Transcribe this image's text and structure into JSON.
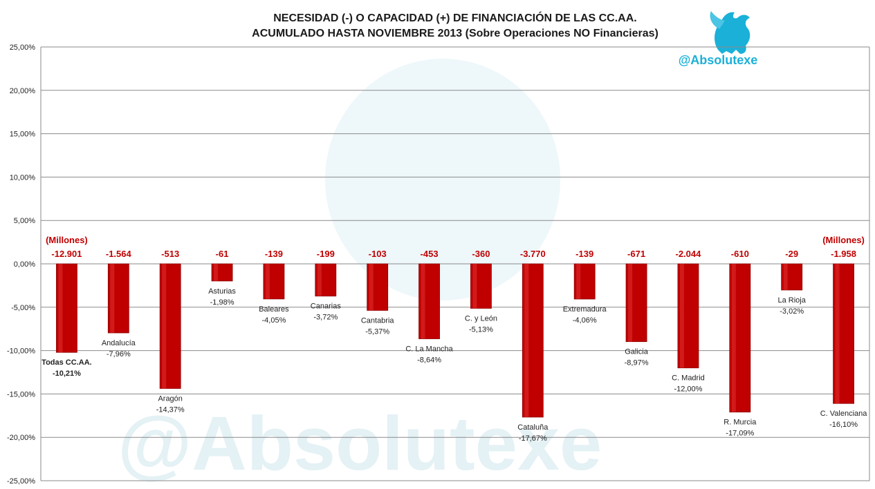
{
  "chart_data": {
    "type": "bar",
    "title_lines": [
      "NECESIDAD (-) O CAPACIDAD (+) DE FINANCIACIÓN DE LAS CC.AA.",
      "ACUMULADO HASTA NOVIEMBRE 2013 (Sobre Operaciones NO Financieras)"
    ],
    "watermark": "@Absolutexe",
    "unit_label": "(Millones)",
    "ylim": [
      -25,
      25
    ],
    "y_ticks": [
      25,
      20,
      15,
      10,
      5,
      0,
      -5,
      -10,
      -15,
      -20,
      -25
    ],
    "y_tick_labels": [
      "25,00%",
      "20,00%",
      "15,00%",
      "10,00%",
      "5,00%",
      "0,00%",
      "-5,00%",
      "-10,00%",
      "-15,00%",
      "-20,00%",
      "-25,00%"
    ],
    "grid": true,
    "bar_color": "#c00000",
    "value_label_color": "#c00000",
    "categories": [
      "Todas CC.AA.",
      "Andalucía",
      "Aragón",
      "Asturias",
      "Baleares",
      "Canarias",
      "Cantabria",
      "C. La Mancha",
      "C. y León",
      "Cataluña",
      "Extremadura",
      "Galicia",
      "C. Madrid",
      "R. Murcia",
      "La Rioja",
      "C. Valenciana"
    ],
    "values": [
      -10.21,
      -7.96,
      -14.37,
      -1.98,
      -4.05,
      -3.72,
      -5.37,
      -8.64,
      -5.13,
      -17.67,
      -4.06,
      -8.97,
      -12.0,
      -17.09,
      -3.02,
      -16.1
    ],
    "value_labels": [
      "-10,21%",
      "-7,96%",
      "-14,37%",
      "-1,98%",
      "-4,05%",
      "-3,72%",
      "-5,37%",
      "-8,64%",
      "-5,13%",
      "-17,67%",
      "-4,06%",
      "-8,97%",
      "-12,00%",
      "-17,09%",
      "-3,02%",
      "-16,10%"
    ],
    "millions": [
      "-12.901",
      "-1.564",
      "-513",
      "-61",
      "-139",
      "-199",
      "-103",
      "-453",
      "-360",
      "-3.770",
      "-139",
      "-671",
      "-2.044",
      "-610",
      "-29",
      "-1.958"
    ]
  }
}
